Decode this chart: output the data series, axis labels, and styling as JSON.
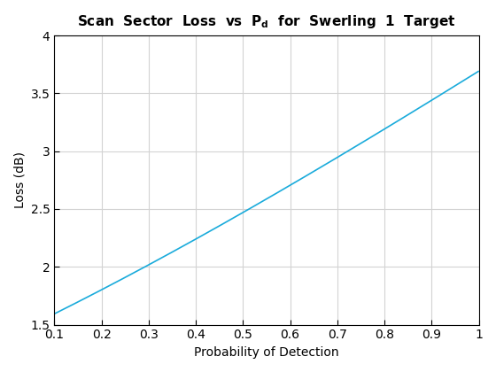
{
  "xlabel": "Probability of Detection",
  "ylabel": "Loss (dB)",
  "xlim": [
    0.1,
    1.0
  ],
  "ylim": [
    1.5,
    4.0
  ],
  "xticks": [
    0.1,
    0.2,
    0.3,
    0.4,
    0.5,
    0.6,
    0.7,
    0.8,
    0.9,
    1.0
  ],
  "xtick_labels": [
    "0.1",
    "0.2",
    "0.3",
    "0.4",
    "0.5",
    "0.6",
    "0.7",
    "0.8",
    "0.9",
    "1"
  ],
  "yticks": [
    1.5,
    2.0,
    2.5,
    3.0,
    3.5,
    4.0
  ],
  "ytick_labels": [
    "1.5",
    "2",
    "2.5",
    "3",
    "3.5",
    "4"
  ],
  "line_color": "#1AABDB",
  "line_width": 1.2,
  "grid_color": "#D3D3D3",
  "background_color": "#FFFFFF",
  "title_fontsize": 11,
  "label_fontsize": 10,
  "tick_fontsize": 10,
  "known_pd": [
    0.1,
    0.2,
    0.3,
    0.4,
    0.5,
    0.6,
    0.7,
    0.8,
    0.9,
    0.98
  ],
  "known_loss": [
    1.6,
    1.8,
    2.01,
    2.23,
    2.47,
    2.72,
    2.98,
    3.17,
    3.4,
    3.67
  ]
}
